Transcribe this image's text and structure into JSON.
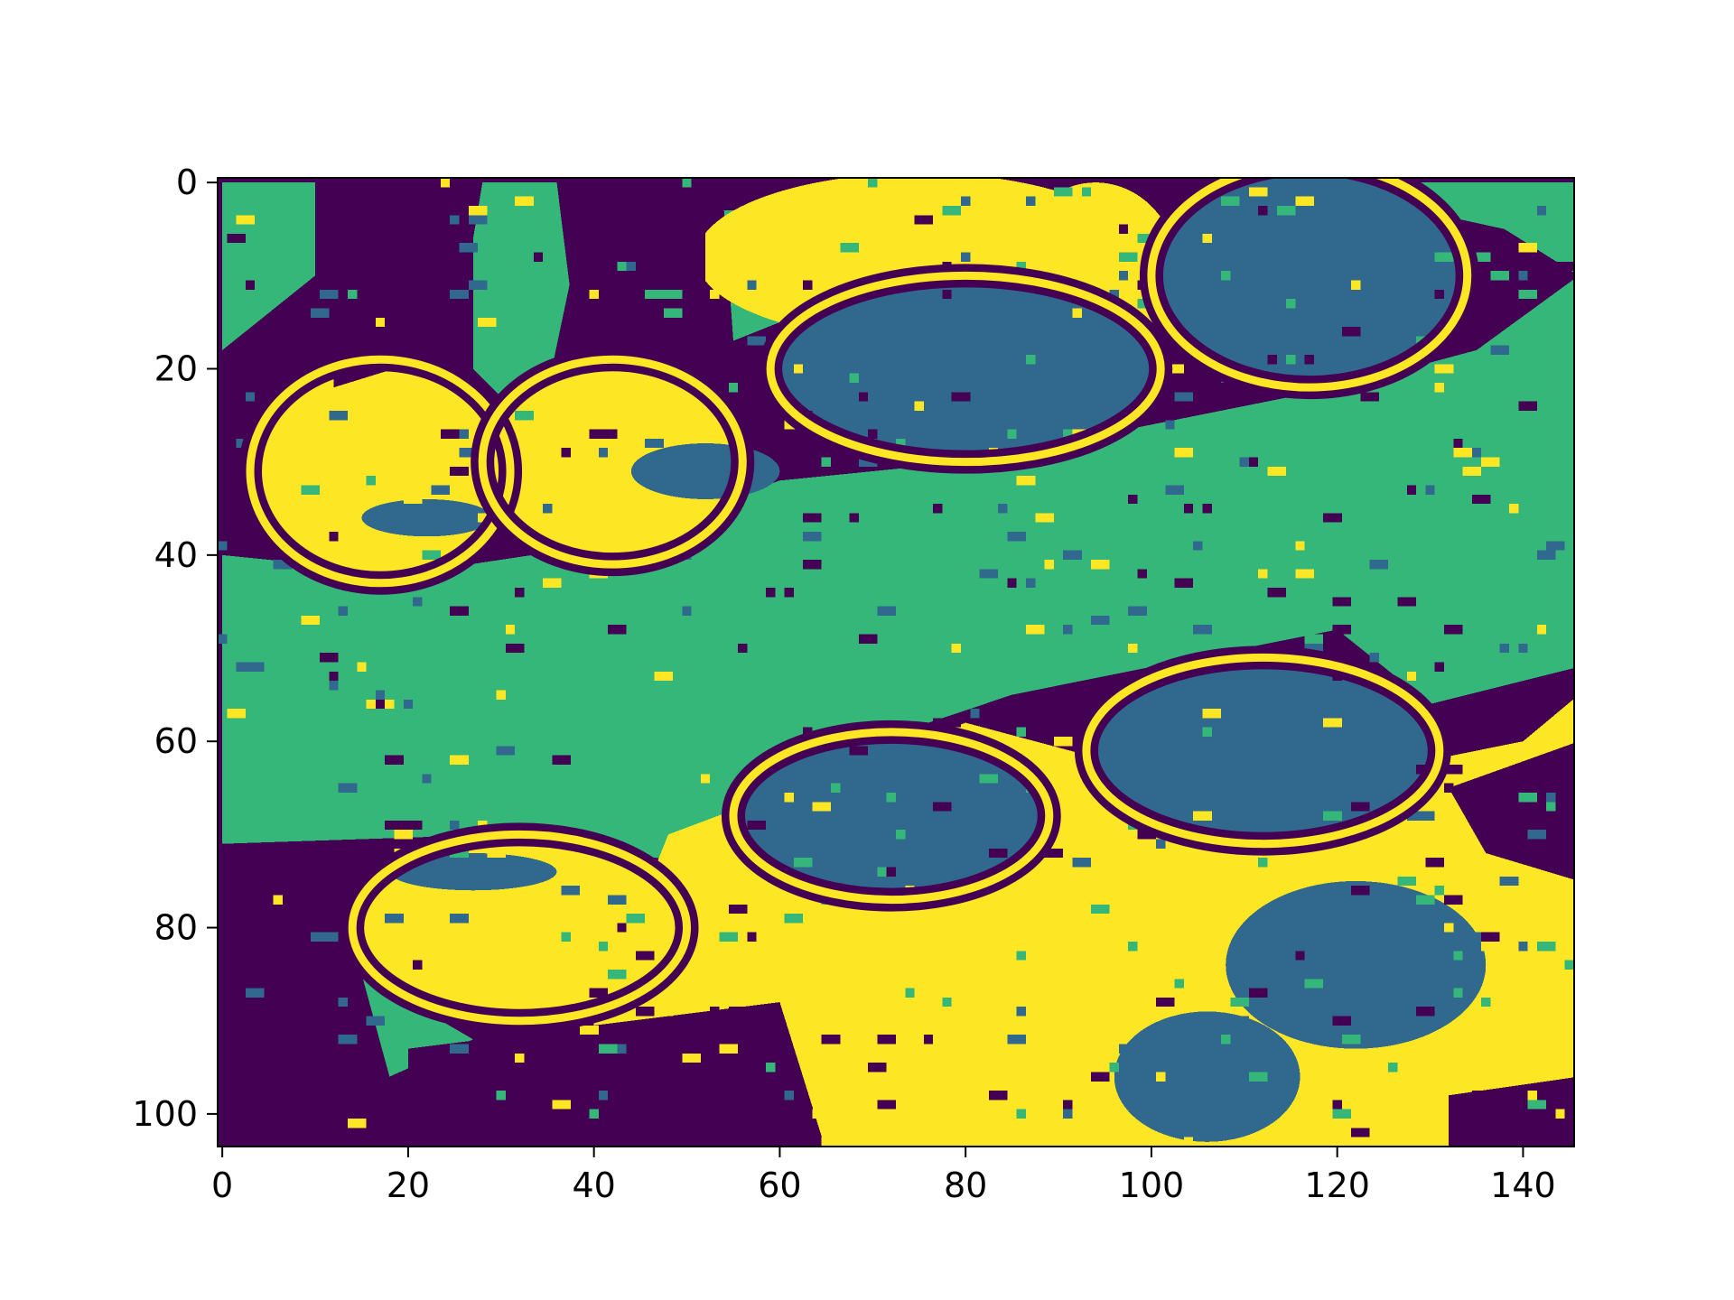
{
  "chart_data": {
    "type": "heatmap",
    "title": "",
    "xlabel": "",
    "ylabel": "",
    "image_shape": [
      104,
      146
    ],
    "xlim": [
      -0.5,
      145.5
    ],
    "ylim": [
      103.5,
      -0.5
    ],
    "x_ticks": [
      "0",
      "20",
      "40",
      "60",
      "80",
      "100",
      "120",
      "140"
    ],
    "x_tick_values": [
      0,
      20,
      40,
      60,
      80,
      100,
      120,
      140
    ],
    "y_ticks": [
      "0",
      "20",
      "40",
      "60",
      "80",
      "100"
    ],
    "y_tick_values": [
      0,
      20,
      40,
      60,
      80,
      100
    ],
    "colormap": "viridis",
    "levels": [
      0,
      1,
      2,
      3
    ],
    "level_colors": [
      "#440154",
      "#31688e",
      "#35b779",
      "#fde725"
    ],
    "grid": false,
    "regions": [
      {
        "level": 2,
        "shape": "poly",
        "points": [
          [
            0,
            40
          ],
          [
            20,
            42
          ],
          [
            40,
            39
          ],
          [
            60,
            32
          ],
          [
            80,
            30
          ],
          [
            100,
            26
          ],
          [
            120,
            22
          ],
          [
            135,
            18
          ],
          [
            146,
            10
          ],
          [
            146,
            52
          ],
          [
            130,
            56
          ],
          [
            120,
            48
          ],
          [
            100,
            52
          ],
          [
            85,
            55
          ],
          [
            70,
            60
          ],
          [
            50,
            73
          ],
          [
            30,
            70
          ],
          [
            0,
            71
          ]
        ]
      },
      {
        "level": 2,
        "shape": "poly",
        "points": [
          [
            0,
            0
          ],
          [
            10,
            0
          ],
          [
            10,
            10
          ],
          [
            0,
            18
          ]
        ]
      },
      {
        "level": 2,
        "shape": "poly",
        "points": [
          [
            27,
            0
          ],
          [
            37,
            0
          ],
          [
            38,
            8
          ],
          [
            34,
            27
          ],
          [
            27,
            20
          ]
        ]
      },
      {
        "level": 2,
        "shape": "poly",
        "points": [
          [
            54,
            3
          ],
          [
            65,
            3
          ],
          [
            60,
            15
          ],
          [
            55,
            17
          ]
        ]
      },
      {
        "level": 2,
        "shape": "poly",
        "points": [
          [
            115,
            0
          ],
          [
            146,
            0
          ],
          [
            146,
            10
          ],
          [
            138,
            5
          ]
        ]
      },
      {
        "level": 2,
        "shape": "poly",
        "points": [
          [
            15,
            85
          ],
          [
            27,
            92
          ],
          [
            18,
            96
          ]
        ]
      },
      {
        "level": 2,
        "shape": "poly",
        "points": [
          [
            46,
            78
          ],
          [
            60,
            90
          ],
          [
            46,
            93
          ]
        ]
      },
      {
        "level": 2,
        "shape": "poly",
        "points": [
          [
            90,
            66
          ],
          [
            100,
            79
          ],
          [
            91,
            78
          ]
        ]
      },
      {
        "level": 3,
        "shape": "ellipse",
        "cx": 17,
        "cy": 31,
        "rx": 14,
        "ry": 12
      },
      {
        "level": 3,
        "shape": "ellipse",
        "cx": 42,
        "cy": 30,
        "rx": 14,
        "ry": 11
      },
      {
        "level": 3,
        "shape": "ellipse",
        "cx": 75,
        "cy": 8,
        "rx": 24,
        "ry": 9
      },
      {
        "level": 3,
        "shape": "ellipse",
        "cx": 94,
        "cy": 10,
        "rx": 9,
        "ry": 10
      },
      {
        "level": 3,
        "shape": "ellipse",
        "cx": 32,
        "cy": 80,
        "rx": 18,
        "ry": 10
      },
      {
        "level": 3,
        "shape": "poly",
        "points": [
          [
            48,
            70
          ],
          [
            80,
            58
          ],
          [
            110,
            66
          ],
          [
            140,
            60
          ],
          [
            146,
            55
          ],
          [
            146,
            104
          ],
          [
            40,
            104
          ],
          [
            40,
            90
          ]
        ]
      },
      {
        "level": 3,
        "shape": "poly",
        "points": [
          [
            0,
            85
          ],
          [
            10,
            85
          ],
          [
            12,
            104
          ],
          [
            0,
            104
          ]
        ]
      },
      {
        "level": 1,
        "shape": "ellipse",
        "cx": 80,
        "cy": 20,
        "rx": 20,
        "ry": 9
      },
      {
        "level": 1,
        "shape": "ellipse",
        "cx": 117,
        "cy": 10,
        "rx": 16,
        "ry": 11
      },
      {
        "level": 1,
        "shape": "ellipse",
        "cx": 52,
        "cy": 31,
        "rx": 8,
        "ry": 3
      },
      {
        "level": 1,
        "shape": "ellipse",
        "cx": 22,
        "cy": 36,
        "rx": 7,
        "ry": 2
      },
      {
        "level": 1,
        "shape": "ellipse",
        "cx": 27,
        "cy": 74,
        "rx": 9,
        "ry": 2
      },
      {
        "level": 1,
        "shape": "ellipse",
        "cx": 72,
        "cy": 68,
        "rx": 16,
        "ry": 8
      },
      {
        "level": 1,
        "shape": "ellipse",
        "cx": 112,
        "cy": 61,
        "rx": 18,
        "ry": 9
      },
      {
        "level": 1,
        "shape": "ellipse",
        "cx": 122,
        "cy": 84,
        "rx": 14,
        "ry": 9
      },
      {
        "level": 1,
        "shape": "ellipse",
        "cx": 106,
        "cy": 96,
        "rx": 10,
        "ry": 7
      },
      {
        "level": 0,
        "shape": "poly",
        "points": [
          [
            0,
            72
          ],
          [
            14,
            74
          ],
          [
            14,
            104
          ],
          [
            0,
            104
          ]
        ]
      },
      {
        "level": 0,
        "shape": "poly",
        "points": [
          [
            20,
            93
          ],
          [
            60,
            88
          ],
          [
            65,
            104
          ],
          [
            20,
            104
          ]
        ]
      },
      {
        "level": 0,
        "shape": "poly",
        "points": [
          [
            12,
            0
          ],
          [
            28,
            0
          ],
          [
            25,
            18
          ],
          [
            12,
            22
          ]
        ]
      },
      {
        "level": 0,
        "shape": "poly",
        "points": [
          [
            36,
            0
          ],
          [
            52,
            0
          ],
          [
            52,
            16
          ],
          [
            38,
            16
          ]
        ]
      },
      {
        "level": 0,
        "shape": "poly",
        "points": [
          [
            132,
            65
          ],
          [
            146,
            60
          ],
          [
            146,
            75
          ],
          [
            136,
            72
          ]
        ]
      },
      {
        "level": 0,
        "shape": "poly",
        "points": [
          [
            132,
            98
          ],
          [
            146,
            96
          ],
          [
            146,
            104
          ],
          [
            132,
            104
          ]
        ]
      }
    ],
    "outlines": [
      {
        "shape": "ellipse",
        "cx": 17,
        "cy": 31,
        "rx": 14,
        "ry": 12
      },
      {
        "shape": "ellipse",
        "cx": 42,
        "cy": 30,
        "rx": 14,
        "ry": 11
      },
      {
        "shape": "ellipse",
        "cx": 80,
        "cy": 20,
        "rx": 21,
        "ry": 10
      },
      {
        "shape": "ellipse",
        "cx": 117,
        "cy": 10,
        "rx": 17,
        "ry": 12
      },
      {
        "shape": "ellipse",
        "cx": 72,
        "cy": 68,
        "rx": 17,
        "ry": 9
      },
      {
        "shape": "ellipse",
        "cx": 112,
        "cy": 61,
        "rx": 19,
        "ry": 10
      },
      {
        "shape": "ellipse",
        "cx": 32,
        "cy": 80,
        "rx": 18,
        "ry": 10
      }
    ],
    "speckle": {
      "seed": 12345,
      "cells": 520
    }
  }
}
